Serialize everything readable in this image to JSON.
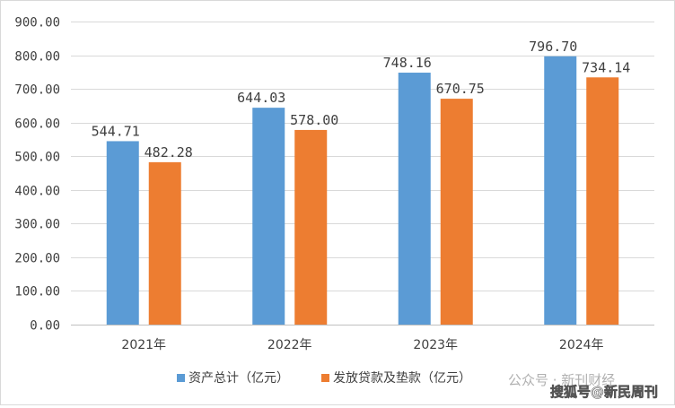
{
  "chart_data": {
    "type": "bar",
    "categories": [
      "2021年",
      "2022年",
      "2023年",
      "2024年"
    ],
    "series": [
      {
        "name": "资产总计（亿元）",
        "color": "#5b9bd5",
        "values": [
          544.71,
          644.03,
          748.16,
          796.7
        ],
        "labels": [
          "544.71",
          "644.03",
          "748.16",
          "796.70"
        ]
      },
      {
        "name": "发放贷款及垫款（亿元）",
        "color": "#ed7d31",
        "values": [
          482.28,
          578.0,
          670.75,
          734.14
        ],
        "labels": [
          "482.28",
          "578.00",
          "670.75",
          "734.14"
        ]
      }
    ],
    "ylim": [
      0,
      900
    ],
    "yticks": [
      "0.00",
      "100.00",
      "200.00",
      "300.00",
      "400.00",
      "500.00",
      "600.00",
      "700.00",
      "800.00",
      "900.00"
    ],
    "grid": true,
    "legend": "bottom"
  },
  "watermarks": [
    "公众号 · 新刊财经",
    "搜狐号@新民周刊"
  ]
}
